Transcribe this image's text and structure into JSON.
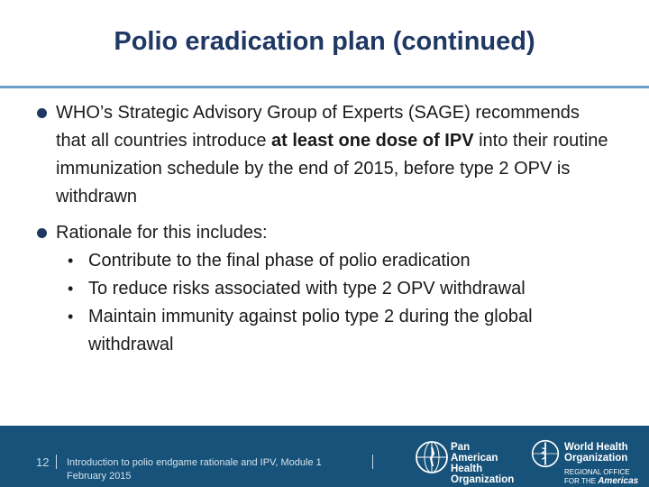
{
  "slide": {
    "title": "Polio eradication plan (continued)",
    "bullet1": {
      "pre": "WHO’s Strategic Advisory Group of Experts (SAGE) recommends that all countries introduce ",
      "bold": "at least one dose of IPV",
      "post": " into their routine immunization schedule by the end of 2015, before type 2 OPV is withdrawn"
    },
    "bullet2": {
      "text": "Rationale for this includes:",
      "subitems": [
        "Contribute to the final phase of polio eradication",
        "To reduce risks associated with type 2 OPV withdrawal",
        "Maintain immunity against polio type 2 during the global withdrawal"
      ]
    }
  },
  "footer": {
    "page_number": "12",
    "text_line1": "Introduction to polio endgame rationale and IPV, Module 1",
    "text_line2": "February 2015",
    "paho_logo": {
      "line1": "Pan American",
      "line2": "Health",
      "line3": "Organization"
    },
    "who_logo": {
      "line1": "World Health",
      "line2": "Organization",
      "regional_prefix": "REGIONAL OFFICE FOR THE",
      "regional_name": "Americas"
    }
  },
  "colors": {
    "title": "#1f3864",
    "rule": "#6a9fc9",
    "footer_bg": "#17527a"
  }
}
